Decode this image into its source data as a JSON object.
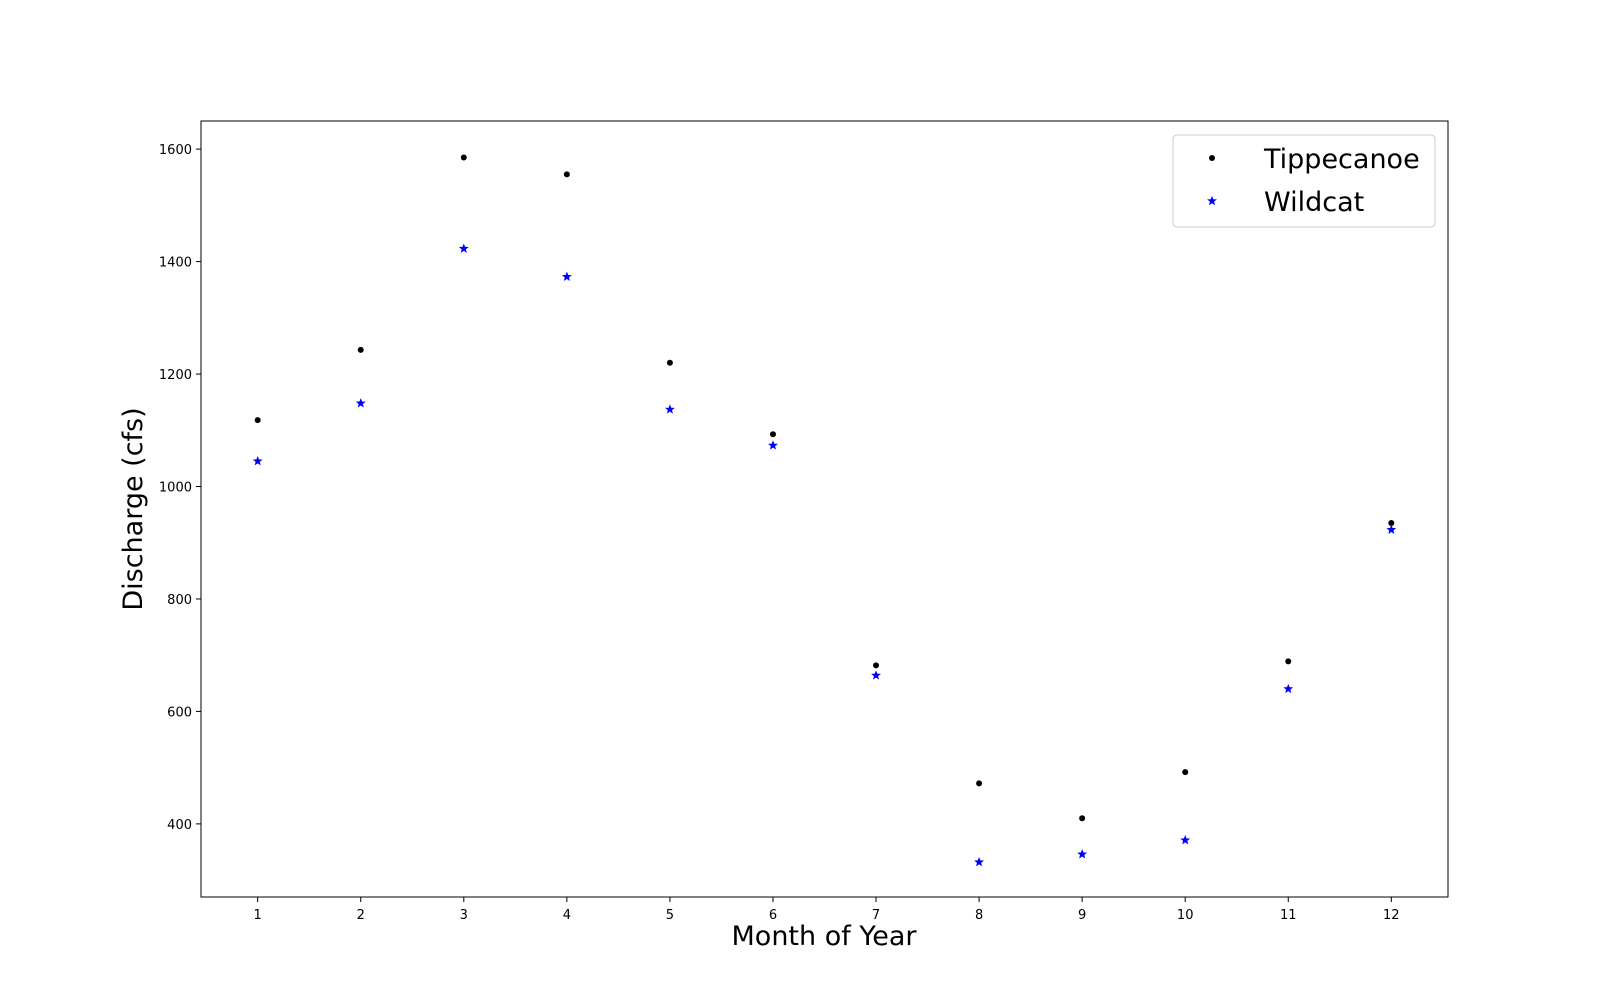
{
  "chart_data": {
    "type": "scatter",
    "title": "",
    "xlabel": "Month of Year",
    "ylabel": "Discharge (cfs)",
    "xlim": [
      0.45,
      12.55
    ],
    "ylim": [
      270,
      1650
    ],
    "xticks": [
      1,
      2,
      3,
      4,
      5,
      6,
      7,
      8,
      9,
      10,
      11,
      12
    ],
    "yticks": [
      400,
      600,
      800,
      1000,
      1200,
      1400,
      1600
    ],
    "grid": false,
    "legend_position": "top-right",
    "x": [
      1,
      2,
      3,
      4,
      5,
      6,
      7,
      8,
      9,
      10,
      11,
      12
    ],
    "series": [
      {
        "name": "Tippecanoe",
        "marker": "dot",
        "color": "#000000",
        "values": [
          1118,
          1243,
          1585,
          1555,
          1220,
          1093,
          682,
          472,
          410,
          492,
          689,
          935
        ]
      },
      {
        "name": "Wildcat",
        "marker": "star",
        "color": "#0000ff",
        "values": [
          1045,
          1148,
          1423,
          1373,
          1137,
          1073,
          664,
          332,
          346,
          371,
          640,
          923
        ]
      }
    ]
  }
}
